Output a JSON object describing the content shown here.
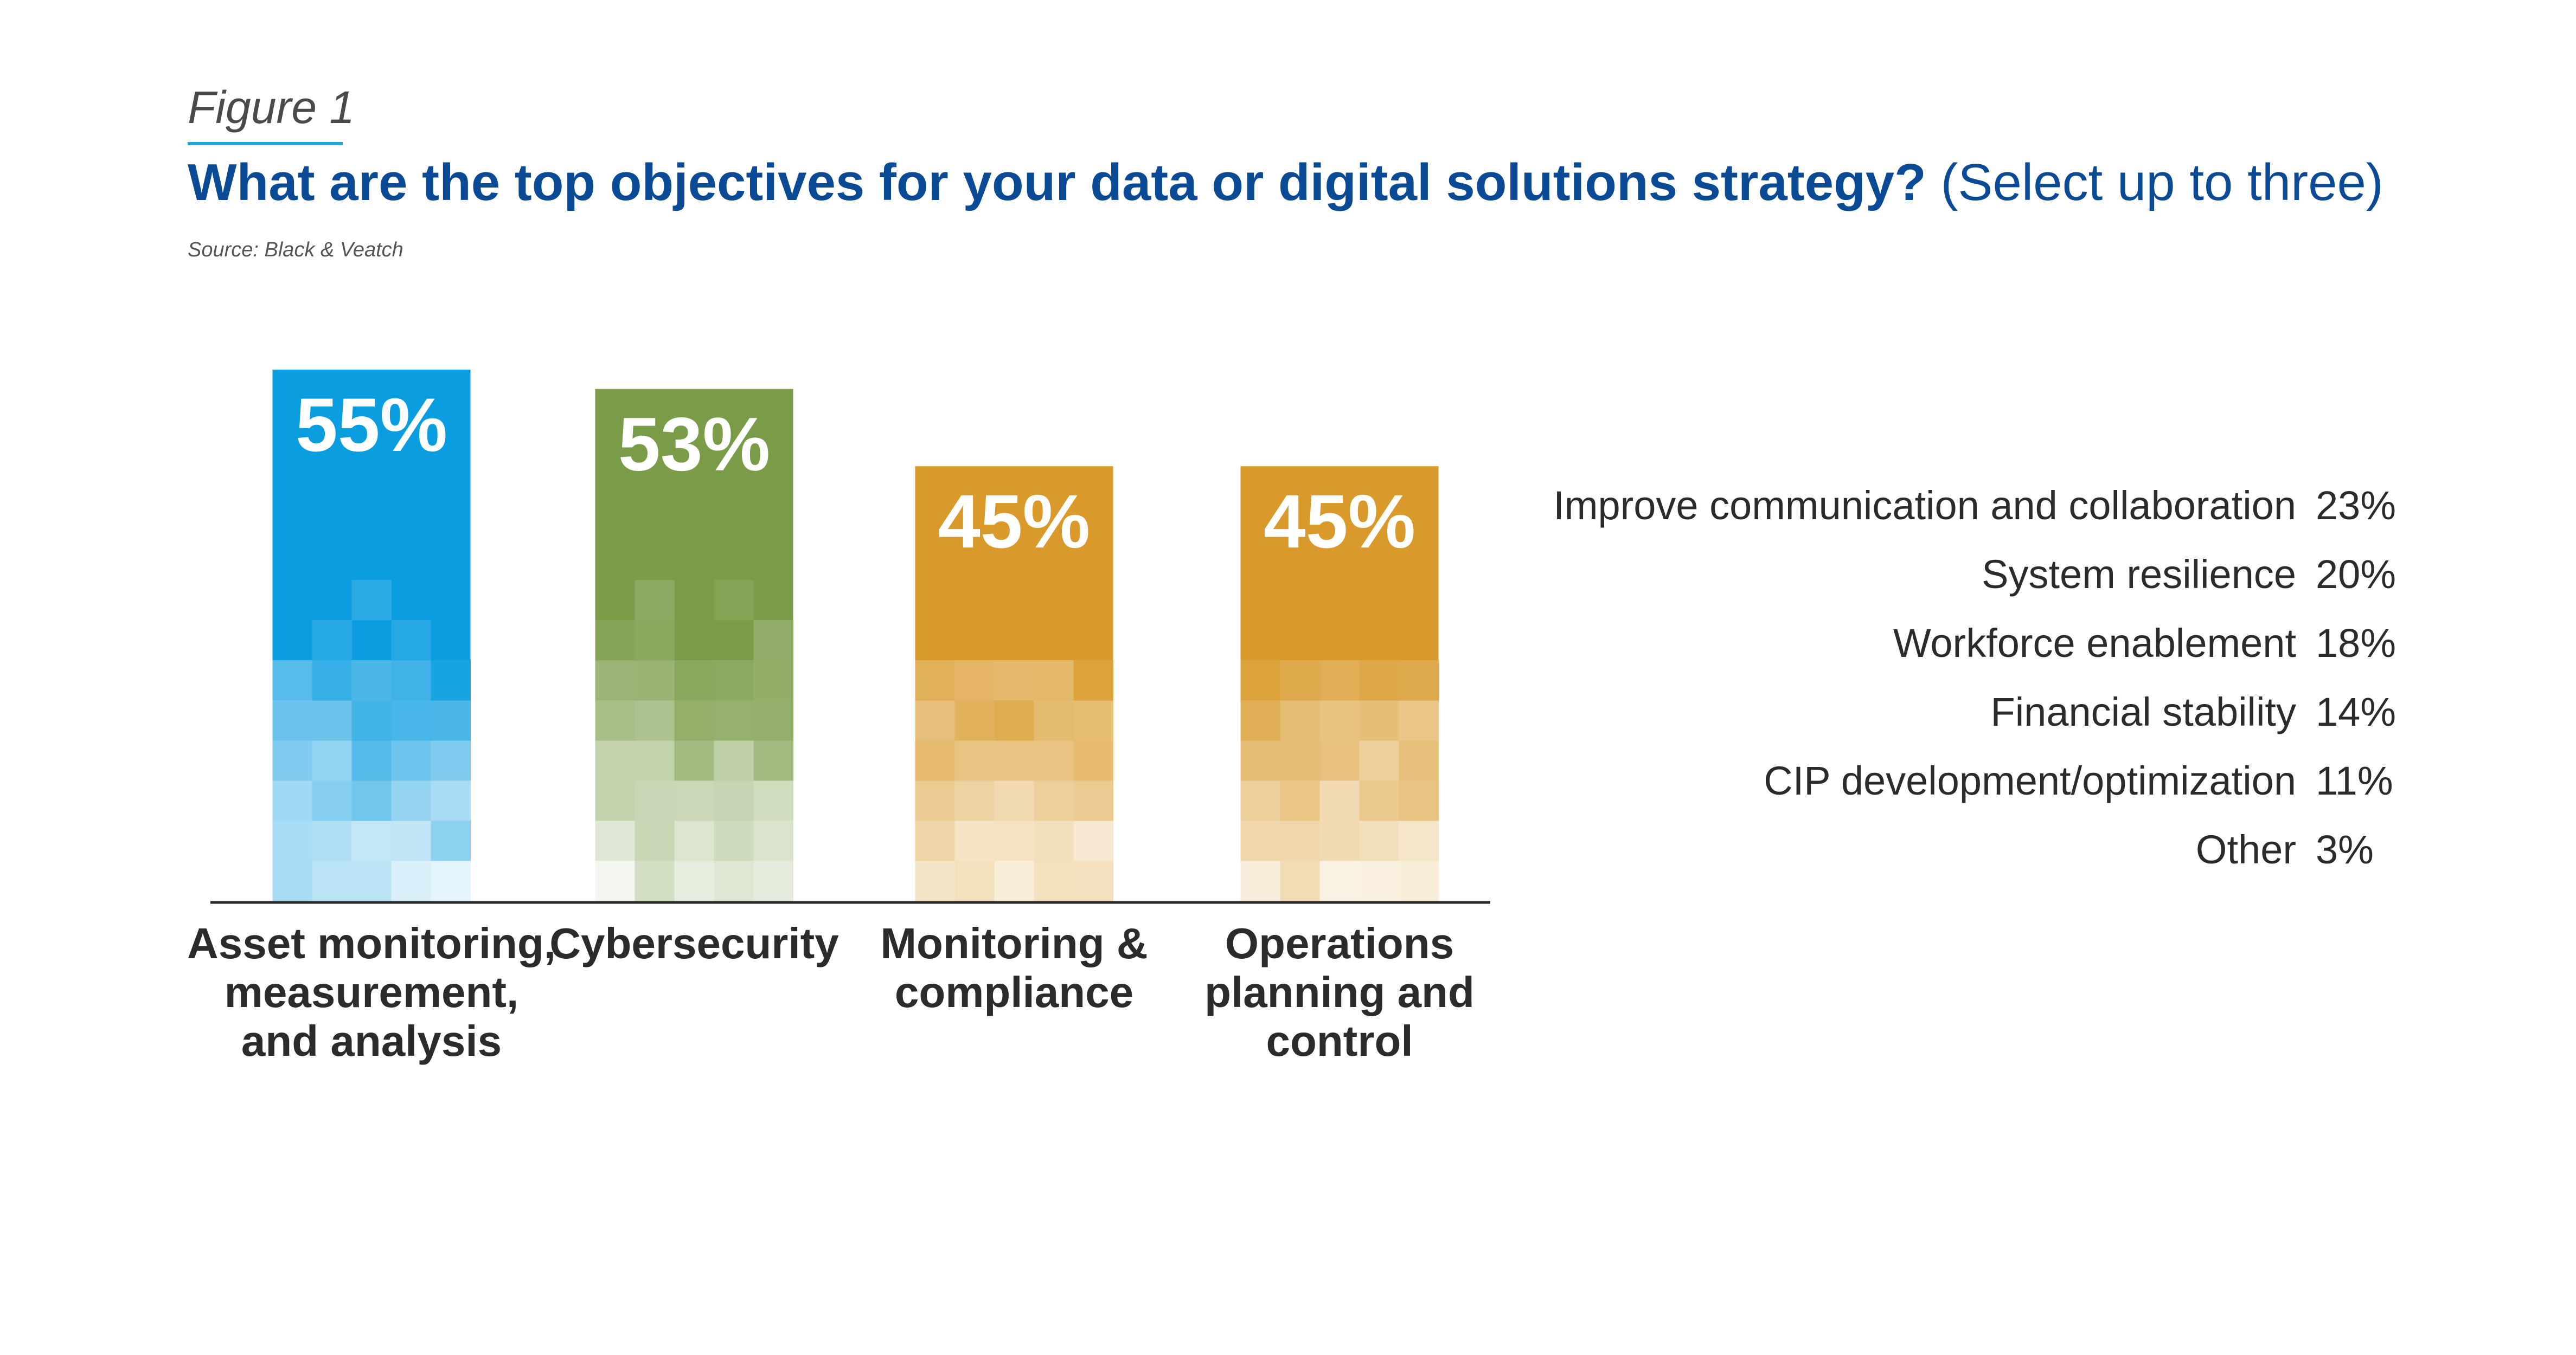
{
  "header": {
    "figure_label": "Figure 1",
    "title_question": "What are the top objectives for your data or digital solutions strategy?",
    "title_note": "(Select up to three)",
    "source": "Source: Black & Veatch"
  },
  "colors": {
    "figure_underline": "#29a5de",
    "title": "#0b4a94",
    "text": "#2b2b2b"
  },
  "chart_data": {
    "type": "bar",
    "title": "What are the top objectives for your data or digital solutions strategy? (Select up to three)",
    "xlabel": "",
    "ylabel": "",
    "ylim": [
      0,
      55
    ],
    "grid": false,
    "categories": [
      "Asset monitoring, measurement, and analysis",
      "Cybersecurity",
      "Monitoring & compliance",
      "Operations planning and control"
    ],
    "category_lines": [
      [
        "Asset monitoring,",
        "measurement,",
        "and analysis"
      ],
      [
        "Cybersecurity"
      ],
      [
        "Monitoring &",
        "compliance"
      ],
      [
        "Operations",
        "planning and",
        "control"
      ]
    ],
    "values": [
      55,
      53,
      45,
      45
    ],
    "value_labels": [
      "55%",
      "53%",
      "45%",
      "45%"
    ],
    "colors": [
      "#0a9de0",
      "#7a9c48",
      "#d99a2b",
      "#d99a2b"
    ],
    "other_responses": [
      {
        "label": "Improve communication and collaboration",
        "value": "23%"
      },
      {
        "label": "System resilience",
        "value": "20%"
      },
      {
        "label": "Workforce enablement",
        "value": "18%"
      },
      {
        "label": "Financial stability",
        "value": "14%"
      },
      {
        "label": "CIP development/optimization",
        "value": "11%"
      },
      {
        "label": "Other",
        "value": "3%"
      }
    ]
  }
}
